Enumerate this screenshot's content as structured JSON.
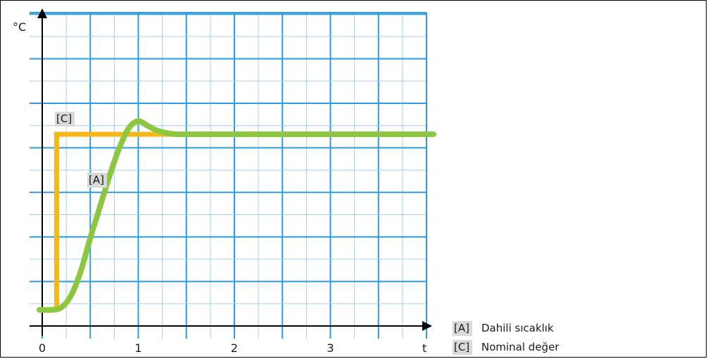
{
  "chart_data": {
    "type": "line",
    "title": "",
    "xlabel": "t",
    "ylabel": "°C",
    "xlim": [
      0,
      4
    ],
    "x_ticks": [
      "0",
      "1",
      "2",
      "3"
    ],
    "grid": true,
    "legend_placement": "bottom-right",
    "series": [
      {
        "name": "Dahili sıcaklık",
        "tag": "[A]",
        "color": "#8dc63f",
        "x": [
          0,
          0.1,
          0.2,
          0.3,
          0.4,
          0.5,
          0.6,
          0.7,
          0.8,
          0.9,
          1.0,
          1.1,
          1.2,
          1.3,
          1.4,
          1.5,
          2.0,
          3.0,
          4.0
        ],
        "y": [
          0.0,
          0.0,
          0.02,
          0.12,
          0.32,
          0.6,
          0.86,
          1.12,
          1.35,
          1.52,
          1.58,
          1.54,
          1.5,
          1.48,
          1.47,
          1.47,
          1.47,
          1.47,
          1.47
        ]
      },
      {
        "name": "Nominal değer",
        "tag": "[C]",
        "color": "#f7b718",
        "x": [
          0.15,
          0.15,
          1.5
        ],
        "y": [
          0.0,
          1.47,
          1.47
        ]
      }
    ]
  },
  "legend": [
    {
      "tag": "[A]",
      "label": "Dahili sıcaklık"
    },
    {
      "tag": "[C]",
      "label": "Nominal değer"
    }
  ]
}
